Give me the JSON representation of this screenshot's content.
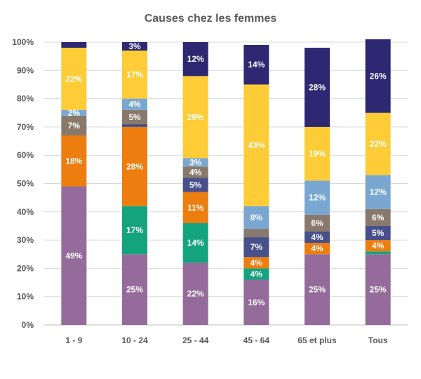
{
  "chart_data": {
    "type": "bar",
    "stacked": true,
    "title": "Causes chez les femmes",
    "categories": [
      "1 - 9",
      "10 - 24",
      "25 - 44",
      "45 - 64",
      "65 et plus",
      "Tous"
    ],
    "y_ticks": [
      "0%",
      "10%",
      "20%",
      "30%",
      "40%",
      "50%",
      "60%",
      "70%",
      "80%",
      "90%",
      "100%"
    ],
    "ylim": [
      0,
      100
    ],
    "grid": true,
    "legend": "none",
    "series": [
      {
        "color": "#946b9a",
        "values": [
          49,
          25,
          22,
          16,
          25,
          25
        ],
        "labels": [
          "49%",
          "25%",
          "22%",
          "16%",
          "25%",
          "25%"
        ]
      },
      {
        "color": "#14a37f",
        "values": [
          0,
          17,
          14,
          4,
          0,
          1
        ],
        "labels": [
          "",
          "17%",
          "14%",
          "4%",
          "",
          ""
        ]
      },
      {
        "color": "#ee7d10",
        "values": [
          18,
          28,
          11,
          4,
          4,
          4
        ],
        "labels": [
          "18%",
          "28%",
          "11%",
          "4%",
          "4%",
          "4%"
        ]
      },
      {
        "color": "#47508b",
        "values": [
          0,
          1,
          5,
          7,
          4,
          5
        ],
        "labels": [
          "",
          "",
          "5%",
          "7%",
          "4%",
          "5%"
        ]
      },
      {
        "color": "#88796c",
        "values": [
          7,
          5,
          4,
          3,
          6,
          6
        ],
        "labels": [
          "7%",
          "5%",
          "4%",
          "",
          "6%",
          "6%"
        ]
      },
      {
        "color": "#79a7d1",
        "values": [
          2,
          4,
          3,
          8,
          12,
          12
        ],
        "labels": [
          "2%",
          "4%",
          "3%",
          "8%",
          "12%",
          "12%"
        ]
      },
      {
        "color": "#fdcc36",
        "values": [
          22,
          17,
          29,
          43,
          19,
          22
        ],
        "labels": [
          "22%",
          "17%",
          "29%",
          "43%",
          "19%",
          "22%"
        ]
      },
      {
        "color": "#2d2871",
        "values": [
          2,
          3,
          12,
          14,
          28,
          26
        ],
        "labels": [
          "",
          "3%",
          "12%",
          "14%",
          "28%",
          "26%"
        ]
      }
    ]
  }
}
